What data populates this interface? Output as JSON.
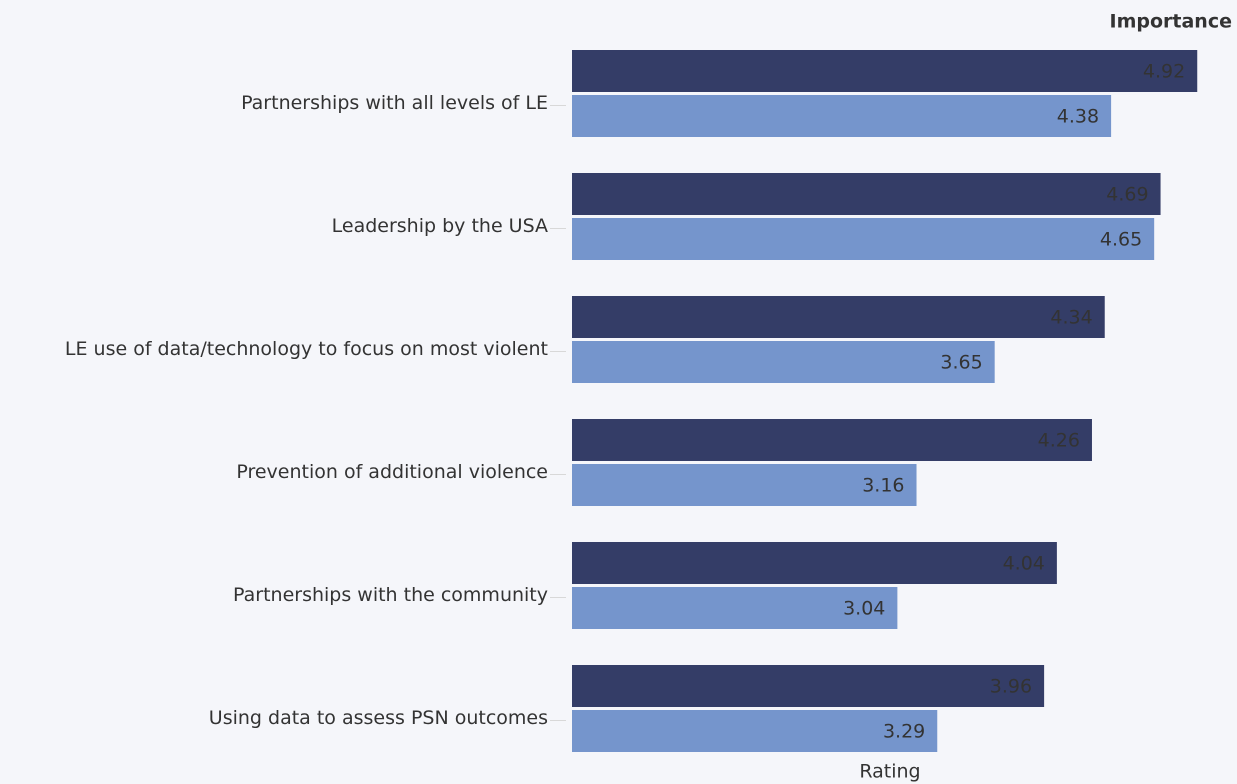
{
  "chart_data": {
    "type": "bar",
    "orientation": "horizontal",
    "x_label": "Rating",
    "categories": [
      "Partnerships with all levels of LE",
      "Leadership by the USA",
      "LE use of data/technology to focus on most violent",
      "Prevention of additional violence",
      "Partnerships with the community",
      "Using data to assess PSN outcomes"
    ],
    "series": [
      {
        "name": "Importance",
        "color": "#343d67",
        "values": [
          4.92,
          4.69,
          4.34,
          4.26,
          4.04,
          3.96
        ]
      },
      {
        "color": "#7595cc",
        "values": [
          4.38,
          4.65,
          3.65,
          3.16,
          3.04,
          3.29
        ]
      }
    ],
    "xlim": [
      1,
      5
    ],
    "legend": "top-right",
    "legend_color": "#4d5382"
  }
}
